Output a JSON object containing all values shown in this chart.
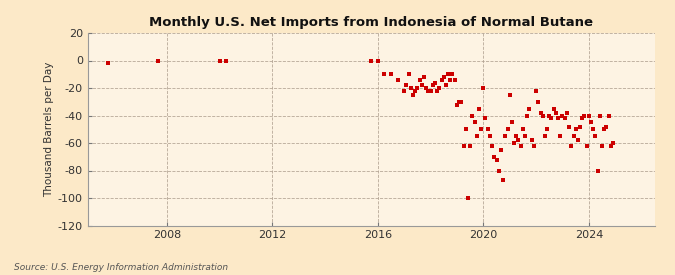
{
  "title": "Monthly U.S. Net Imports from Indonesia of Normal Butane",
  "ylabel": "Thousand Barrels per Day",
  "source": "Source: U.S. Energy Information Administration",
  "background_color": "#fce9c8",
  "plot_background_color": "#fdf3e3",
  "marker_color": "#cc0000",
  "ylim": [
    -120,
    20
  ],
  "yticks": [
    20,
    0,
    -20,
    -40,
    -60,
    -80,
    -100,
    -120
  ],
  "xticks": [
    2008,
    2012,
    2016,
    2020,
    2024
  ],
  "xlim": [
    2005.0,
    2026.5
  ],
  "data_points": [
    [
      2005.75,
      -2
    ],
    [
      2007.67,
      0
    ],
    [
      2010.0,
      0
    ],
    [
      2010.25,
      0
    ],
    [
      2015.75,
      0
    ],
    [
      2016.0,
      0
    ],
    [
      2016.25,
      -10
    ],
    [
      2016.5,
      -10
    ],
    [
      2016.75,
      -14
    ],
    [
      2017.0,
      -22
    ],
    [
      2017.08,
      -18
    ],
    [
      2017.17,
      -10
    ],
    [
      2017.25,
      -20
    ],
    [
      2017.33,
      -25
    ],
    [
      2017.42,
      -22
    ],
    [
      2017.5,
      -20
    ],
    [
      2017.58,
      -14
    ],
    [
      2017.67,
      -18
    ],
    [
      2017.75,
      -12
    ],
    [
      2017.83,
      -20
    ],
    [
      2017.92,
      -22
    ],
    [
      2018.0,
      -22
    ],
    [
      2018.08,
      -18
    ],
    [
      2018.17,
      -16
    ],
    [
      2018.25,
      -22
    ],
    [
      2018.33,
      -20
    ],
    [
      2018.42,
      -14
    ],
    [
      2018.5,
      -12
    ],
    [
      2018.58,
      -18
    ],
    [
      2018.67,
      -10
    ],
    [
      2018.75,
      -14
    ],
    [
      2018.83,
      -10
    ],
    [
      2018.92,
      -14
    ],
    [
      2019.0,
      -32
    ],
    [
      2019.08,
      -30
    ],
    [
      2019.17,
      -30
    ],
    [
      2019.25,
      -62
    ],
    [
      2019.33,
      -50
    ],
    [
      2019.42,
      -100
    ],
    [
      2019.5,
      -62
    ],
    [
      2019.58,
      -40
    ],
    [
      2019.67,
      -45
    ],
    [
      2019.75,
      -55
    ],
    [
      2019.83,
      -35
    ],
    [
      2019.92,
      -50
    ],
    [
      2020.0,
      -20
    ],
    [
      2020.08,
      -42
    ],
    [
      2020.17,
      -50
    ],
    [
      2020.25,
      -55
    ],
    [
      2020.33,
      -62
    ],
    [
      2020.42,
      -70
    ],
    [
      2020.5,
      -72
    ],
    [
      2020.58,
      -80
    ],
    [
      2020.67,
      -65
    ],
    [
      2020.75,
      -87
    ],
    [
      2020.83,
      -55
    ],
    [
      2020.92,
      -50
    ],
    [
      2021.0,
      -25
    ],
    [
      2021.08,
      -45
    ],
    [
      2021.17,
      -60
    ],
    [
      2021.25,
      -55
    ],
    [
      2021.33,
      -58
    ],
    [
      2021.42,
      -62
    ],
    [
      2021.5,
      -50
    ],
    [
      2021.58,
      -55
    ],
    [
      2021.67,
      -40
    ],
    [
      2021.75,
      -35
    ],
    [
      2021.83,
      -58
    ],
    [
      2021.92,
      -62
    ],
    [
      2022.0,
      -22
    ],
    [
      2022.08,
      -30
    ],
    [
      2022.17,
      -38
    ],
    [
      2022.25,
      -40
    ],
    [
      2022.33,
      -55
    ],
    [
      2022.42,
      -50
    ],
    [
      2022.5,
      -40
    ],
    [
      2022.58,
      -42
    ],
    [
      2022.67,
      -35
    ],
    [
      2022.75,
      -38
    ],
    [
      2022.83,
      -42
    ],
    [
      2022.92,
      -55
    ],
    [
      2023.0,
      -40
    ],
    [
      2023.08,
      -42
    ],
    [
      2023.17,
      -38
    ],
    [
      2023.25,
      -48
    ],
    [
      2023.33,
      -62
    ],
    [
      2023.42,
      -55
    ],
    [
      2023.5,
      -50
    ],
    [
      2023.58,
      -58
    ],
    [
      2023.67,
      -48
    ],
    [
      2023.75,
      -42
    ],
    [
      2023.83,
      -40
    ],
    [
      2023.92,
      -62
    ],
    [
      2024.0,
      -40
    ],
    [
      2024.08,
      -45
    ],
    [
      2024.17,
      -50
    ],
    [
      2024.25,
      -55
    ],
    [
      2024.33,
      -80
    ],
    [
      2024.42,
      -40
    ],
    [
      2024.5,
      -62
    ],
    [
      2024.58,
      -50
    ],
    [
      2024.67,
      -48
    ],
    [
      2024.75,
      -40
    ],
    [
      2024.83,
      -62
    ],
    [
      2024.92,
      -60
    ]
  ]
}
